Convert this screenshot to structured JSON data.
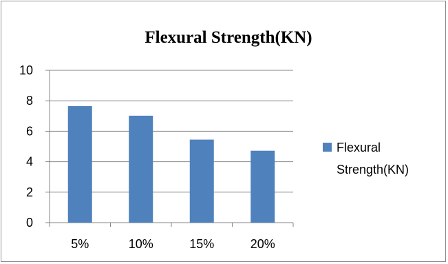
{
  "chart_data": {
    "type": "bar",
    "title": "Flexural Strength(KN)",
    "categories": [
      "5%",
      "10%",
      "15%",
      "20%"
    ],
    "series": [
      {
        "name": "Flexural Strength(KN)",
        "values": [
          7.65,
          7.02,
          5.45,
          4.72
        ],
        "color": "#4F81BD"
      }
    ],
    "xlabel": "",
    "ylabel": "",
    "ylim": [
      0,
      10
    ],
    "yticks": [
      0,
      2,
      4,
      6,
      8,
      10
    ],
    "grid": true,
    "legend_position": "right",
    "legend_label_lines": [
      "Flexural",
      "Strength(KN)"
    ]
  }
}
